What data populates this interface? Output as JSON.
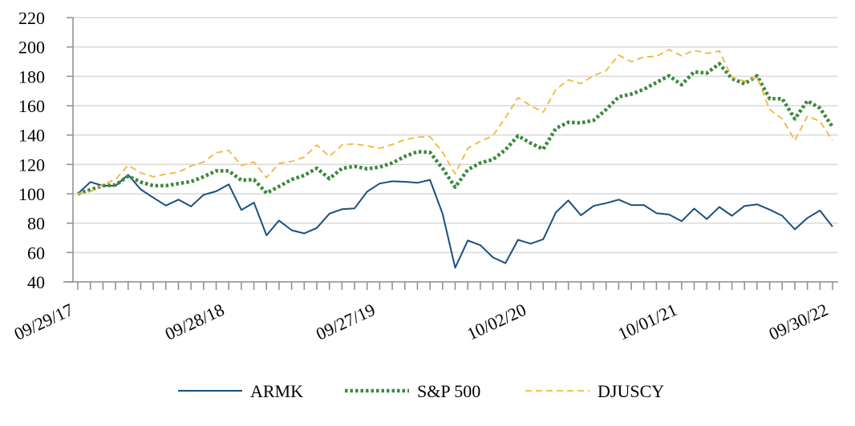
{
  "chart_data": {
    "type": "line",
    "title": "",
    "xlabel": "",
    "ylabel": "",
    "ylim": [
      40,
      220
    ],
    "yticks": [
      40,
      60,
      80,
      100,
      120,
      140,
      160,
      180,
      200,
      220
    ],
    "grid": true,
    "legend_position": "bottom",
    "x_tick_labels": [
      {
        "index": 0,
        "label": "09/29/17"
      },
      {
        "index": 12,
        "label": "09/28/18"
      },
      {
        "index": 24,
        "label": "09/27/19"
      },
      {
        "index": 36,
        "label": "10/02/20"
      },
      {
        "index": 48,
        "label": "10/01/21"
      },
      {
        "index": 60,
        "label": "09/30/22"
      }
    ],
    "num_points": 61,
    "series": [
      {
        "name": "ARMK",
        "style": "solid",
        "color": "#1b4f7e",
        "values": [
          100,
          108,
          105.5,
          105.5,
          113,
          103,
          97.4,
          92,
          96,
          91.4,
          99.3,
          101.7,
          106.4,
          89,
          94,
          71.7,
          81.8,
          75.2,
          73,
          76.7,
          86.5,
          89.5,
          90,
          101.5,
          107,
          108.5,
          108.2,
          107.5,
          109.5,
          86.4,
          49.6,
          68.2,
          65,
          56.7,
          52.7,
          68.7,
          66,
          69,
          87.3,
          95.5,
          85.3,
          91.7,
          93.6,
          96,
          92.3,
          92.3,
          86.8,
          85.9,
          81.3,
          89.9,
          82.8,
          91,
          85,
          91.7,
          92.8,
          89.2,
          85,
          75.8,
          83.5,
          88.6,
          77.6
        ]
      },
      {
        "name": "S&P 500",
        "style": "dotted",
        "color": "#3b8a3e",
        "values": [
          100,
          102.8,
          105.5,
          106,
          112,
          108,
          105.5,
          105.5,
          107,
          108.3,
          111.6,
          115.6,
          115.6,
          109.2,
          109.7,
          100.5,
          105,
          109.7,
          112.5,
          117.4,
          110.3,
          117.3,
          118.7,
          117,
          118.2,
          121,
          125.5,
          128.7,
          128.2,
          117.3,
          104.5,
          116.4,
          121,
          123.3,
          130,
          139.5,
          134.5,
          130.4,
          144.5,
          148.7,
          148.3,
          150,
          157.4,
          166,
          167.9,
          171.2,
          175.8,
          180.4,
          174.3,
          183.1,
          182.2,
          188.6,
          178.5,
          174.9,
          180.4,
          164.8,
          164.8,
          151,
          163.3,
          158.3,
          145.5
        ]
      },
      {
        "name": "DJUSCY",
        "style": "dashed",
        "color": "#f2b53a",
        "values": [
          100,
          101.5,
          106.4,
          109.7,
          119.4,
          114.3,
          111.6,
          113.4,
          114.7,
          119,
          121.6,
          128,
          129.5,
          119.3,
          121.6,
          111,
          120.7,
          122,
          125,
          133.2,
          125.5,
          133.3,
          134,
          132.7,
          131,
          133.6,
          137,
          138.5,
          139,
          128.2,
          113.6,
          131,
          135.8,
          139.5,
          151.8,
          165.5,
          160,
          155.5,
          171,
          177.6,
          175,
          180.4,
          184,
          194.5,
          190,
          193.2,
          193.6,
          198.2,
          194,
          197.8,
          195.6,
          197.2,
          179.4,
          176.7,
          179.4,
          157.4,
          151,
          136.3,
          152.8,
          149.5,
          136.3
        ]
      }
    ]
  }
}
